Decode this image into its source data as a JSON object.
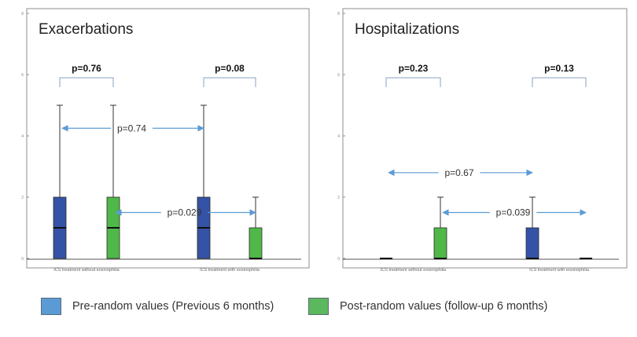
{
  "colors": {
    "pre": "#3553a6",
    "post": "#4fb848",
    "legend_pre": "#5b9bd5",
    "legend_post": "#5cb85c",
    "arrow": "#5b9bd5",
    "frame": "#8c8c8c"
  },
  "legend": [
    {
      "label": "Pre-random values (Previous 6 months)",
      "color": "#5b9bd5"
    },
    {
      "label": "Post-random values (follow-up 6 months)",
      "color": "#5cb85c"
    }
  ],
  "chart_data": [
    {
      "type": "box",
      "title": "Exacerbations",
      "ylim": [
        0,
        8
      ],
      "yticks": [
        "0",
        "2",
        "4",
        "6",
        "8"
      ],
      "categories": [
        "ICS treatment without eosinophilia",
        "ICS treatment with eosinophilia"
      ],
      "series": [
        {
          "group": "pre",
          "boxes": [
            {
              "min": 0,
              "q1": 0,
              "median": 1,
              "q3": 2,
              "max": 5
            },
            {
              "min": 0,
              "q1": 0,
              "median": 1,
              "q3": 2,
              "max": 5
            }
          ]
        },
        {
          "group": "post",
          "boxes": [
            {
              "min": 0,
              "q1": 0,
              "median": 1,
              "q3": 2,
              "max": 5
            },
            {
              "min": 0,
              "q1": 0,
              "median": 0,
              "q3": 1,
              "max": 2
            }
          ]
        }
      ],
      "brackets": [
        {
          "label": "p=0.76",
          "from_box": 0,
          "to_box": 1
        },
        {
          "label": "p=0.08",
          "from_box": 2,
          "to_box": 3
        }
      ],
      "comparisons": [
        {
          "label": "p=0.74",
          "y": 4.25,
          "from_box": 0,
          "to_box": 2
        },
        {
          "label": "p=0.029",
          "y": 1.5,
          "from_box": 1,
          "to_box": 3
        }
      ]
    },
    {
      "type": "box",
      "title": "Hospitalizations",
      "ylim": [
        0,
        8
      ],
      "yticks": [
        "0",
        "2",
        "4",
        "6",
        "8"
      ],
      "categories": [
        "ICS treatment without eosinophilia",
        "ICS treatment with eosinophilia"
      ],
      "series": [
        {
          "group": "pre",
          "boxes": [
            {
              "min": 0,
              "q1": 0,
              "median": 0,
              "q3": 0,
              "max": 0
            },
            {
              "min": 0,
              "q1": 0,
              "median": 0,
              "q3": 1,
              "max": 2
            }
          ]
        },
        {
          "group": "post",
          "boxes": [
            {
              "min": 0,
              "q1": 0,
              "median": 0,
              "q3": 1,
              "max": 2
            },
            {
              "min": 0,
              "q1": 0,
              "median": 0,
              "q3": 0,
              "max": 0
            }
          ]
        }
      ],
      "brackets": [
        {
          "label": "p=0.23",
          "from_box": 0,
          "to_box": 1
        },
        {
          "label": "p=0.13",
          "from_box": 2,
          "to_box": 3
        }
      ],
      "comparisons": [
        {
          "label": "p=0.67",
          "y": 2.8,
          "from_box": 0,
          "to_box": 2
        },
        {
          "label": "p=0.039",
          "y": 1.5,
          "from_box": 1,
          "to_box": 3
        }
      ]
    }
  ]
}
